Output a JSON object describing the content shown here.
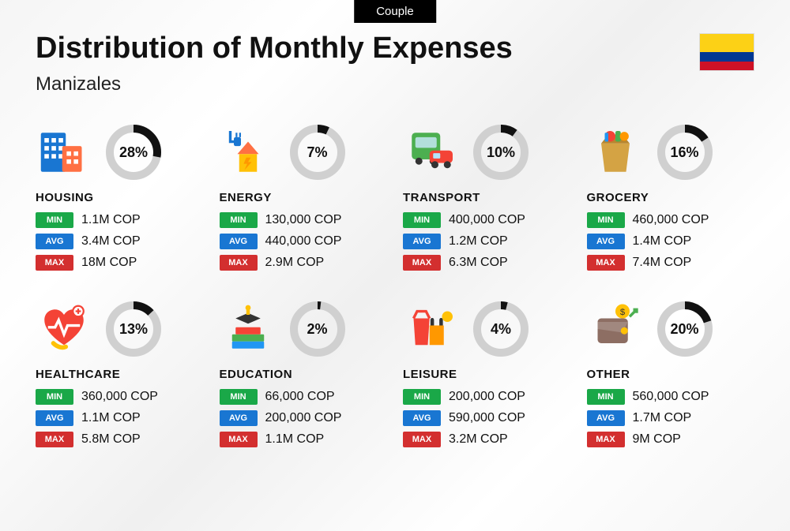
{
  "label": "Couple",
  "title": "Distribution of Monthly Expenses",
  "subtitle": "Manizales",
  "badges": {
    "min": "MIN",
    "avg": "AVG",
    "max": "MAX"
  },
  "colors": {
    "donut_track": "#d0d0d0",
    "donut_fill": "#111111",
    "badge_min": "#1aa848",
    "badge_avg": "#1976d2",
    "badge_max": "#d32f2f"
  },
  "categories": [
    {
      "name": "HOUSING",
      "percent": 28,
      "min": "1.1M COP",
      "avg": "3.4M COP",
      "max": "18M COP",
      "icon": "housing"
    },
    {
      "name": "ENERGY",
      "percent": 7,
      "min": "130,000 COP",
      "avg": "440,000 COP",
      "max": "2.9M COP",
      "icon": "energy"
    },
    {
      "name": "TRANSPORT",
      "percent": 10,
      "min": "400,000 COP",
      "avg": "1.2M COP",
      "max": "6.3M COP",
      "icon": "transport"
    },
    {
      "name": "GROCERY",
      "percent": 16,
      "min": "460,000 COP",
      "avg": "1.4M COP",
      "max": "7.4M COP",
      "icon": "grocery"
    },
    {
      "name": "HEALTHCARE",
      "percent": 13,
      "min": "360,000 COP",
      "avg": "1.1M COP",
      "max": "5.8M COP",
      "icon": "healthcare"
    },
    {
      "name": "EDUCATION",
      "percent": 2,
      "min": "66,000 COP",
      "avg": "200,000 COP",
      "max": "1.1M COP",
      "icon": "education"
    },
    {
      "name": "LEISURE",
      "percent": 4,
      "min": "200,000 COP",
      "avg": "590,000 COP",
      "max": "3.2M COP",
      "icon": "leisure"
    },
    {
      "name": "OTHER",
      "percent": 20,
      "min": "560,000 COP",
      "avg": "1.7M COP",
      "max": "9M COP",
      "icon": "other"
    }
  ]
}
